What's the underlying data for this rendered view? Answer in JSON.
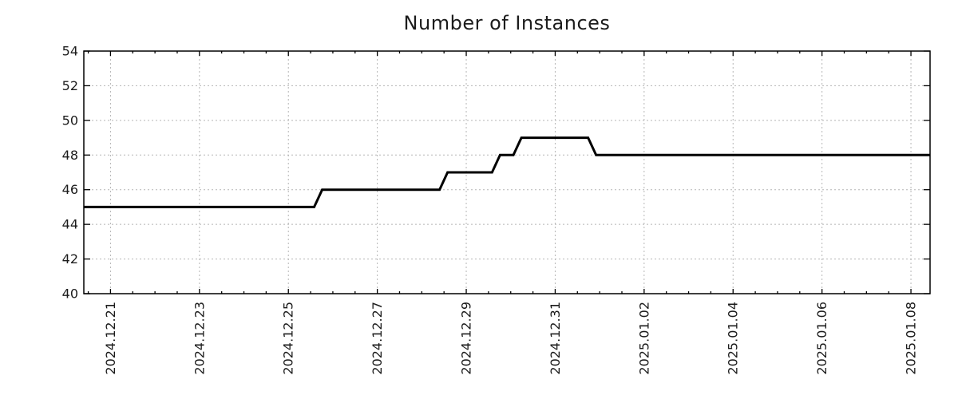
{
  "page": {
    "background": "#ffffff"
  },
  "chart_data": {
    "type": "line",
    "subtype": "step",
    "title": "Number of Instances",
    "xlabel": "",
    "ylabel": "",
    "x_axis": {
      "tick_labels": [
        "2024.12.21",
        "2024.12.23",
        "2024.12.25",
        "2024.12.27",
        "2024.12.29",
        "2024.12.31",
        "2025.01.02",
        "2025.01.04",
        "2025.01.06",
        "2025.01.08"
      ],
      "major_tick_days": [
        0,
        2,
        4,
        6,
        8,
        10,
        12,
        14,
        16,
        18
      ],
      "minor_tick_step_days": 0.5,
      "epoch_day0_label": "2024.12.21",
      "xlim_days": [
        -0.6,
        18.43
      ]
    },
    "y_axis": {
      "tick_labels": [
        "40",
        "42",
        "44",
        "46",
        "48",
        "50",
        "52",
        "54"
      ],
      "tick_values": [
        40,
        42,
        44,
        46,
        48,
        50,
        52,
        54
      ],
      "ylim": [
        40,
        54
      ]
    },
    "grid": {
      "show": true,
      "style": "dashed"
    },
    "legend": {
      "show": false
    },
    "series": [
      {
        "name": "Number of Instances",
        "color": "#000000",
        "width": 3,
        "points": [
          {
            "day": -0.6,
            "value": 45
          },
          {
            "day": 4.58,
            "value": 45
          },
          {
            "day": 4.76,
            "value": 46
          },
          {
            "day": 7.4,
            "value": 46
          },
          {
            "day": 7.58,
            "value": 47
          },
          {
            "day": 8.58,
            "value": 47
          },
          {
            "day": 8.76,
            "value": 48
          },
          {
            "day": 9.06,
            "value": 48
          },
          {
            "day": 9.24,
            "value": 49
          },
          {
            "day": 10.74,
            "value": 49
          },
          {
            "day": 10.92,
            "value": 48
          },
          {
            "day": 18.43,
            "value": 48
          }
        ],
        "plateaus": [
          {
            "value": 45,
            "until": "~2024.12.25 midday"
          },
          {
            "value": 46,
            "until": "~2024.12.28 morning"
          },
          {
            "value": 47,
            "until": "~2024.12.29 afternoon"
          },
          {
            "value": 48,
            "until": "~2024.12.30 early"
          },
          {
            "value": 49,
            "until": "~2024.12.31 evening"
          },
          {
            "value": 48,
            "until": "end of range"
          }
        ]
      }
    ],
    "colors": {
      "axis": "#000000",
      "text": "#1c1c1c",
      "line": "#000000",
      "grid": "#b5b5b5"
    }
  }
}
